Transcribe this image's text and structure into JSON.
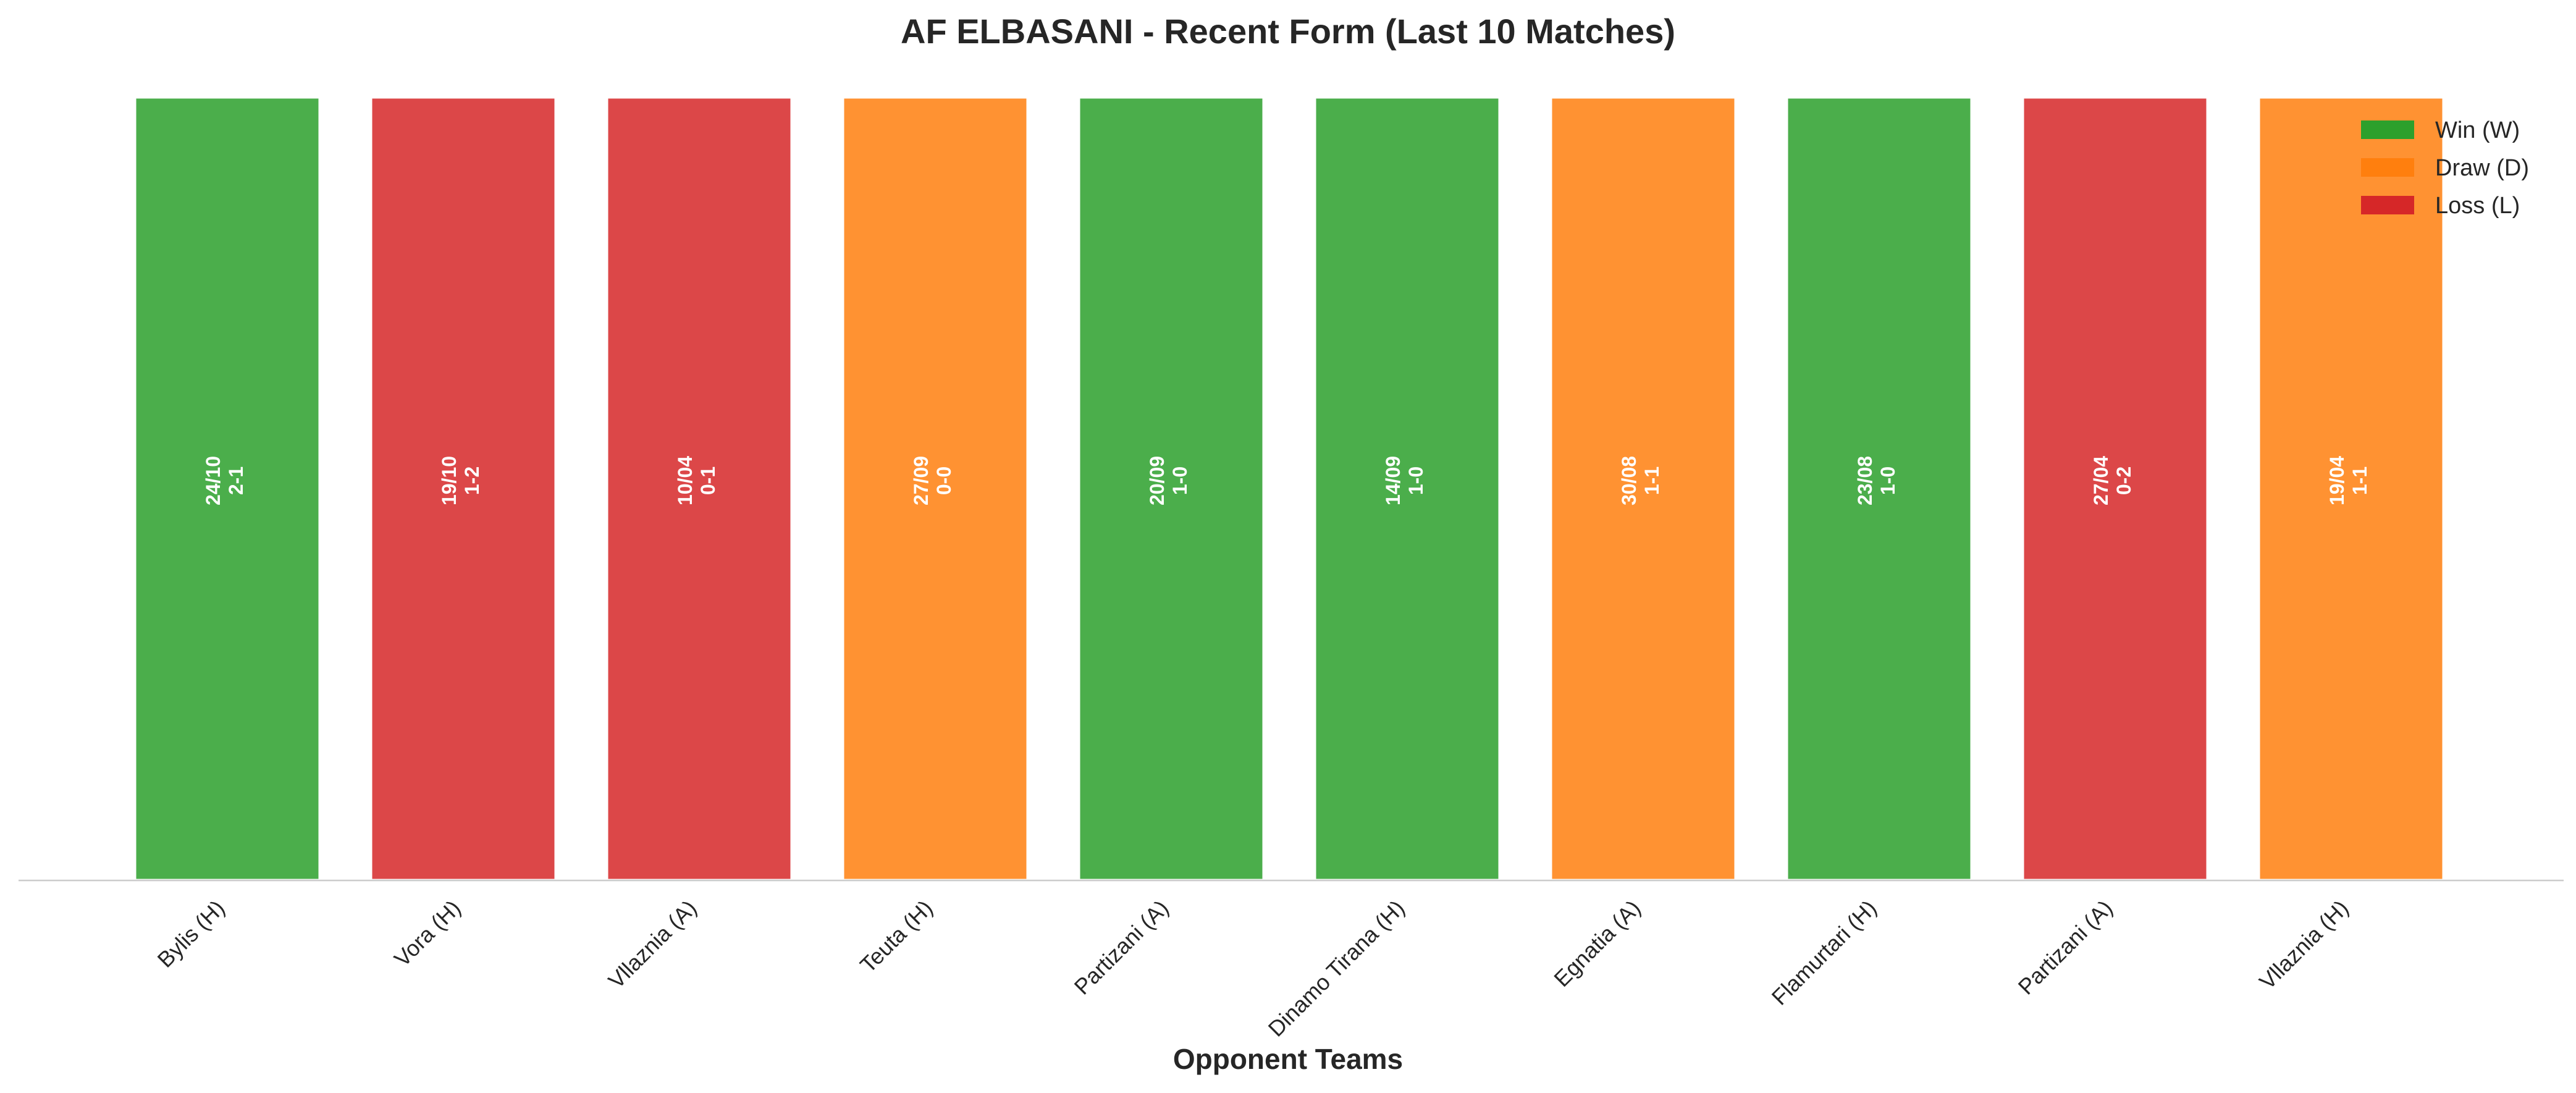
{
  "chart_data": {
    "type": "bar",
    "title": "AF ELBASANI - Recent Form (Last 10 Matches)",
    "xlabel": "Opponent Teams",
    "ylabel": "",
    "ylim": [
      0,
      1
    ],
    "grid": false,
    "legend_position": "top-right",
    "categories": [
      "Bylis (H)",
      "Vora (H)",
      "Vllaznia (A)",
      "Teuta (H)",
      "Partizani (A)",
      "Dinamo Tirana (H)",
      "Egnatia (A)",
      "Flamurtari (H)",
      "Partizani (A)",
      "Vllaznia (H)"
    ],
    "values": [
      1,
      1,
      1,
      1,
      1,
      1,
      1,
      1,
      1,
      1
    ],
    "results": [
      "W",
      "L",
      "L",
      "D",
      "W",
      "W",
      "D",
      "W",
      "L",
      "D"
    ],
    "dates": [
      "24/10",
      "19/10",
      "10/04",
      "27/09",
      "20/09",
      "14/09",
      "30/08",
      "23/08",
      "27/04",
      "19/04"
    ],
    "scores": [
      "2-1",
      "1-2",
      "0-1",
      "0-0",
      "1-0",
      "1-0",
      "1-1",
      "1-0",
      "0-2",
      "1-1"
    ],
    "legend": [
      {
        "key": "W",
        "label": "Win (W)",
        "color": "#2ca02c"
      },
      {
        "key": "D",
        "label": "Draw (D)",
        "color": "#ff7f0e"
      },
      {
        "key": "L",
        "label": "Loss (L)",
        "color": "#d62728"
      }
    ]
  }
}
